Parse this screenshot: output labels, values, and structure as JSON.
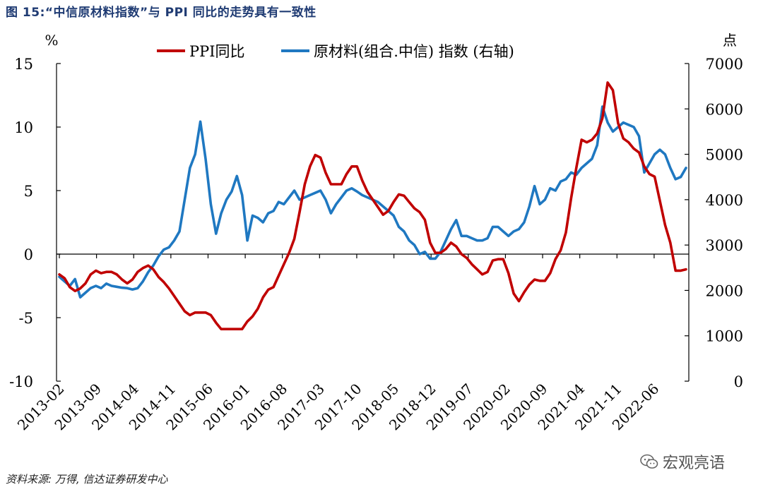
{
  "title": "图 15:“中信原材料指数”与 PPI 同比的走势具有一致性",
  "source": "资料来源: 万得, 信达证券研发中心",
  "watermark": "宏观亮语",
  "chart_data": {
    "type": "line",
    "left_unit": "%",
    "right_unit": "点",
    "left_ylim": [
      -10,
      15
    ],
    "left_ticks": [
      "15",
      "10",
      "5",
      "0",
      "-5",
      "-10"
    ],
    "right_ylim": [
      0,
      7000
    ],
    "right_ticks": [
      "7000",
      "6000",
      "5000",
      "4000",
      "3000",
      "2000",
      "1000",
      "0"
    ],
    "x_ticks": [
      "2013-02",
      "2013-09",
      "2014-04",
      "2014-11",
      "2015-06",
      "2016-01",
      "2016-08",
      "2017-03",
      "2017-10",
      "2018-05",
      "2018-12",
      "2019-07",
      "2020-02",
      "2020-09",
      "2021-04",
      "2021-11",
      "2022-06"
    ],
    "x_start": "2013-02",
    "x_end": "2022-12",
    "legend_position": "top",
    "colors": {
      "ppi": "#c00000",
      "raw": "#1f78c1"
    },
    "series": [
      {
        "name": "PPI同比",
        "axis": "left",
        "values": [
          -1.6,
          -1.9,
          -2.6,
          -2.9,
          -2.7,
          -2.3,
          -1.6,
          -1.3,
          -1.5,
          -1.4,
          -1.4,
          -1.6,
          -2.0,
          -2.3,
          -2.0,
          -1.4,
          -1.1,
          -0.9,
          -1.2,
          -1.8,
          -2.2,
          -2.7,
          -3.3,
          -3.9,
          -4.5,
          -4.8,
          -4.6,
          -4.6,
          -4.6,
          -4.8,
          -5.4,
          -5.9,
          -5.9,
          -5.9,
          -5.9,
          -5.9,
          -5.3,
          -4.9,
          -4.3,
          -3.4,
          -2.8,
          -2.6,
          -1.7,
          -0.8,
          0.1,
          1.2,
          3.3,
          5.5,
          6.9,
          7.8,
          7.6,
          6.4,
          5.5,
          5.5,
          5.5,
          6.3,
          6.9,
          6.9,
          5.8,
          4.9,
          4.3,
          3.7,
          3.1,
          3.4,
          4.1,
          4.7,
          4.6,
          4.1,
          3.6,
          3.3,
          2.7,
          0.9,
          0.1,
          0.1,
          0.4,
          0.9,
          0.6,
          0.0,
          -0.3,
          -0.8,
          -1.2,
          -1.6,
          -1.4,
          -0.5,
          -0.4,
          -0.4,
          -1.5,
          -3.1,
          -3.7,
          -3.0,
          -2.4,
          -2.0,
          -2.1,
          -2.1,
          -1.5,
          -0.4,
          0.3,
          1.7,
          4.4,
          6.8,
          9.0,
          8.8,
          9.0,
          9.5,
          10.7,
          13.5,
          12.9,
          10.3,
          9.1,
          8.8,
          8.3,
          8.0,
          6.9,
          6.3,
          6.1,
          4.2,
          2.3,
          0.9,
          -1.3,
          -1.3,
          -1.2
        ]
      },
      {
        "name": "原材料(组合.中信) 指数 (右轴)",
        "axis": "right",
        "values": [
          2300,
          2200,
          2100,
          2250,
          1850,
          1950,
          2050,
          2100,
          2050,
          2150,
          2100,
          2080,
          2060,
          2050,
          2020,
          2050,
          2200,
          2400,
          2550,
          2750,
          2900,
          2950,
          3100,
          3300,
          4000,
          4700,
          5000,
          5720,
          4900,
          3900,
          3250,
          3700,
          4000,
          4180,
          4520,
          4100,
          3100,
          3650,
          3600,
          3500,
          3700,
          3750,
          3950,
          3900,
          4050,
          4200,
          4000,
          4050,
          4100,
          4150,
          4200,
          4000,
          3700,
          3900,
          4050,
          4200,
          4250,
          4180,
          4100,
          4050,
          4000,
          3950,
          3850,
          3750,
          3650,
          3400,
          3300,
          3100,
          3000,
          2800,
          2850,
          2700,
          2700,
          2850,
          3100,
          3350,
          3550,
          3200,
          3200,
          3150,
          3100,
          3100,
          3150,
          3400,
          3400,
          3300,
          3200,
          3300,
          3350,
          3500,
          3850,
          4300,
          3900,
          4000,
          4250,
          4200,
          4400,
          4450,
          4600,
          4550,
          4700,
          4800,
          4900,
          5200,
          6050,
          5700,
          5500,
          5600,
          5700,
          5650,
          5600,
          5400,
          4600,
          4800,
          5000,
          5100,
          5000,
          4700,
          4450,
          4500,
          4700
        ]
      }
    ]
  }
}
